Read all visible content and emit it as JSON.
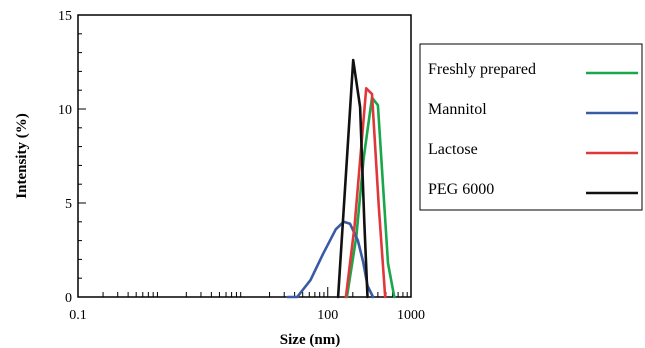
{
  "chart_data": {
    "type": "line",
    "xlabel": "Size (nm)",
    "ylabel": "Intensity (%)",
    "x_scale": "log",
    "x_ticks": [
      {
        "value": 0.1,
        "label": "0.1"
      },
      {
        "value": 100,
        "label": "100"
      },
      {
        "value": 1000,
        "label": "1000"
      }
    ],
    "xlim": [
      0.1,
      1000
    ],
    "ylim": [
      0,
      15
    ],
    "y_ticks": [
      {
        "value": 0,
        "label": "0"
      },
      {
        "value": 5,
        "label": "5"
      },
      {
        "value": 10,
        "label": "10"
      },
      {
        "value": 15,
        "label": "15"
      }
    ],
    "grid": false,
    "legend_position": "right",
    "series": [
      {
        "name": "Freshly prepared",
        "color": "#1aa64a",
        "points": [
          [
            170,
            0
          ],
          [
            220,
            3.2
          ],
          [
            270,
            7.4
          ],
          [
            340,
            10.6
          ],
          [
            400,
            10.2
          ],
          [
            530,
            1.8
          ],
          [
            630,
            0
          ]
        ]
      },
      {
        "name": "Mannitol",
        "color": "#3b5aa6",
        "points": [
          [
            33,
            0
          ],
          [
            43,
            0
          ],
          [
            62,
            0.9
          ],
          [
            88,
            2.3
          ],
          [
            125,
            3.6
          ],
          [
            155,
            4.0
          ],
          [
            185,
            3.9
          ],
          [
            230,
            3.0
          ],
          [
            265,
            1.9
          ],
          [
            300,
            0.6
          ],
          [
            350,
            0
          ]
        ]
      },
      {
        "name": "Lactose",
        "color": "#e0383a",
        "points": [
          [
            165,
            0
          ],
          [
            210,
            3.8
          ],
          [
            290,
            11.1
          ],
          [
            340,
            10.8
          ],
          [
            410,
            4.8
          ],
          [
            490,
            0
          ]
        ]
      },
      {
        "name": "PEG 6000",
        "color": "#111111",
        "points": [
          [
            133,
            0
          ],
          [
            165,
            6.5
          ],
          [
            202,
            12.6
          ],
          [
            245,
            10.1
          ],
          [
            275,
            4.0
          ],
          [
            300,
            0
          ]
        ]
      }
    ]
  }
}
